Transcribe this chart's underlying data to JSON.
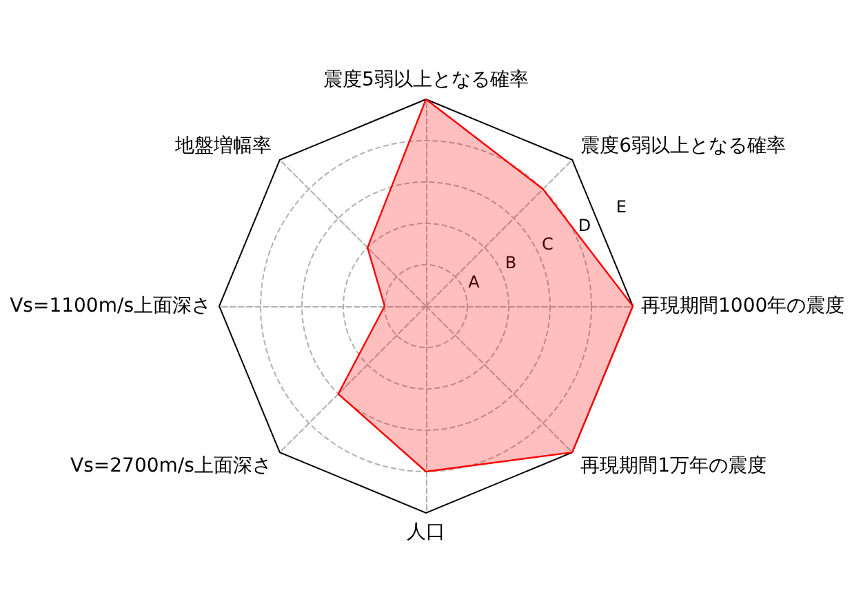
{
  "chart_data": {
    "type": "radar",
    "categories": [
      "震度5弱以上となる確率",
      "震度6弱以上となる確率",
      "再現期間1000年の震度",
      "再現期間1万年の震度",
      "人口",
      "Vs=2700m/s上面深さ",
      "Vs=1100m/s上面深さ",
      "地盤増幅率"
    ],
    "series": [
      {
        "color": "#ff0000",
        "values": [
          5,
          4,
          5,
          5,
          4,
          3,
          1,
          2
        ]
      }
    ],
    "ylim": [
      0,
      5
    ],
    "yticks": [
      {
        "value": 1,
        "label": "A"
      },
      {
        "value": 2,
        "label": "B"
      },
      {
        "value": 3,
        "label": "C"
      },
      {
        "value": 4,
        "label": "D"
      },
      {
        "value": 5,
        "label": "E"
      }
    ],
    "grid": true
  }
}
